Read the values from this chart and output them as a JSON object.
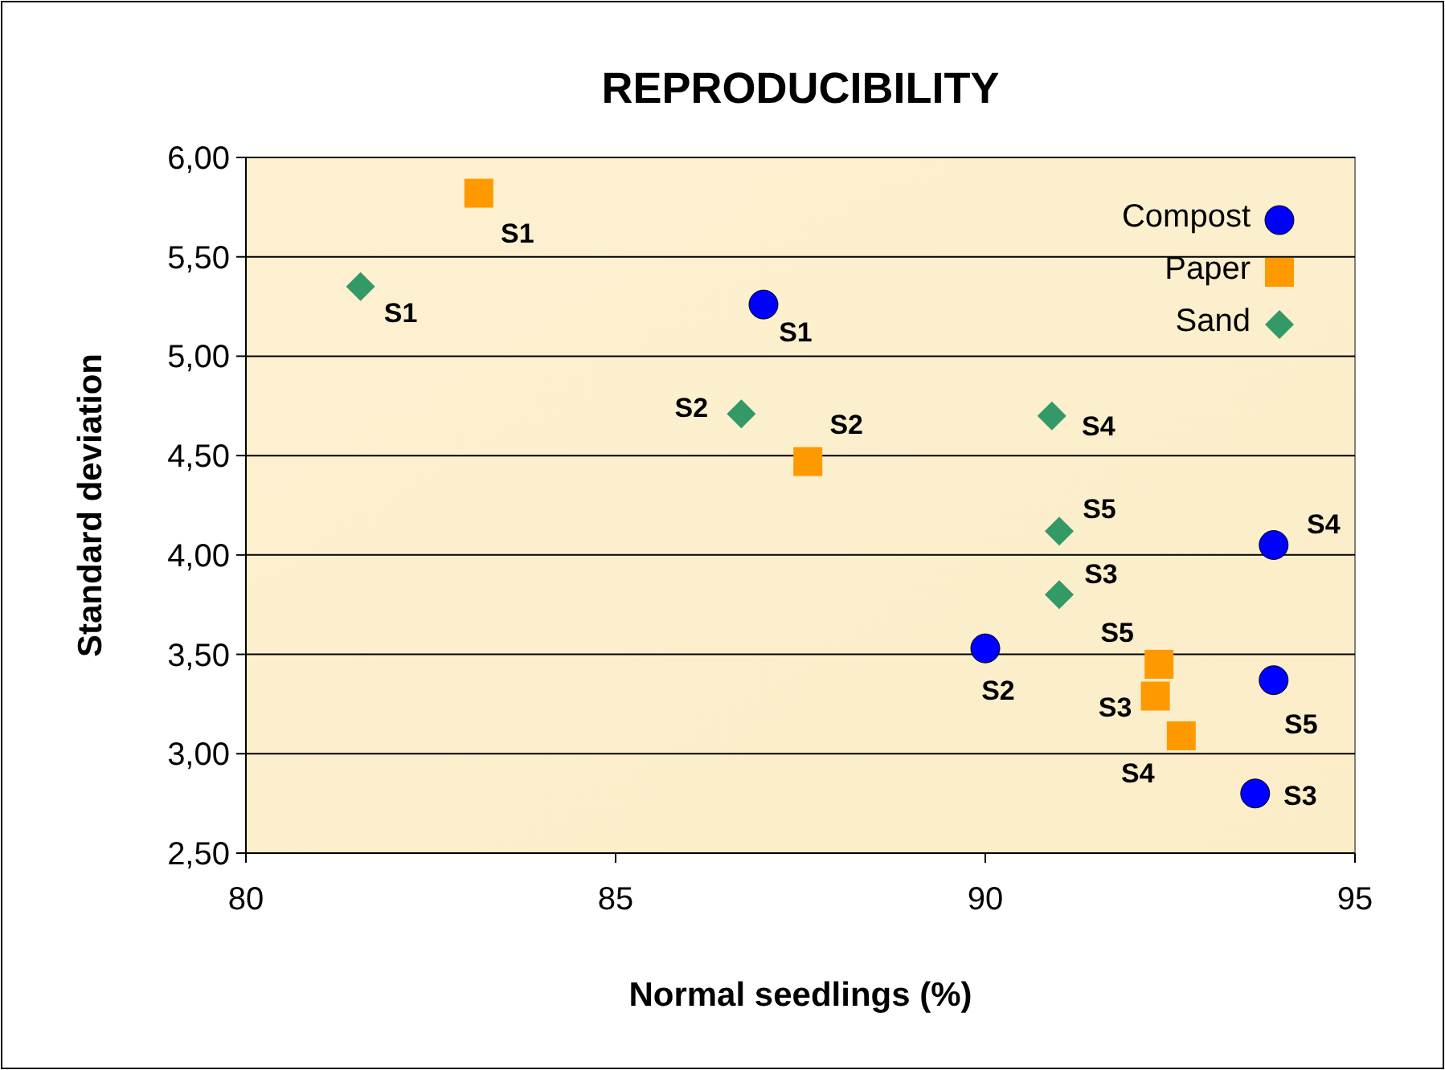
{
  "chart_data": {
    "type": "scatter",
    "title": "REPRODUCIBILITY",
    "xlabel": "Normal seedlings (%)",
    "ylabel": "Standard deviation",
    "xlim": [
      80,
      95
    ],
    "xticks": [
      80,
      85,
      90,
      95
    ],
    "ylim": [
      2.5,
      6
    ],
    "yticks": [
      {
        "value": 2.5,
        "label": "2,50"
      },
      {
        "value": 3,
        "label": "3,00"
      },
      {
        "value": 3.5,
        "label": "3,50"
      },
      {
        "value": 4,
        "label": "4,00"
      },
      {
        "value": 4.5,
        "label": "4,50"
      },
      {
        "value": 5,
        "label": "5,00"
      },
      {
        "value": 5.5,
        "label": "5,50"
      },
      {
        "value": 6,
        "label": "6,00"
      }
    ],
    "grid": "y",
    "legend": "top right",
    "series": [
      {
        "name": "Compost",
        "color": "#0000ff",
        "marker": "circle",
        "x": [
          87.0,
          90.0,
          93.9,
          93.9,
          93.65
        ],
        "values": [
          5.26,
          3.53,
          4.05,
          3.37,
          2.8
        ]
      },
      {
        "name": "Paper",
        "color": "#ff9900",
        "marker": "square",
        "x": [
          83.15,
          87.6,
          92.35,
          92.3,
          92.65
        ],
        "values": [
          5.82,
          4.47,
          3.45,
          3.29,
          3.09
        ]
      },
      {
        "name": "Sand",
        "color": "#339966",
        "marker": "diamond",
        "x": [
          81.55,
          86.7,
          90.9,
          91.0,
          91.0
        ],
        "values": [
          5.35,
          4.71,
          4.7,
          4.12,
          3.8
        ]
      }
    ],
    "annotations": [
      {
        "text": "S1",
        "x": 87.0,
        "y": 5.26
      },
      {
        "text": "S2",
        "x": 90.0,
        "y": 3.53
      },
      {
        "text": "S4",
        "x": 93.9,
        "y": 4.05
      },
      {
        "text": "S5",
        "x": 93.9,
        "y": 3.37
      },
      {
        "text": "S3",
        "x": 93.65,
        "y": 2.8
      },
      {
        "text": "S1",
        "x": 83.15,
        "y": 5.82
      },
      {
        "text": "S2",
        "x": 87.6,
        "y": 4.47
      },
      {
        "text": "S5",
        "x": 92.35,
        "y": 3.45
      },
      {
        "text": "S3",
        "x": 92.3,
        "y": 3.29
      },
      {
        "text": "S4",
        "x": 92.65,
        "y": 3.09
      },
      {
        "text": "S1",
        "x": 81.55,
        "y": 5.35
      },
      {
        "text": "S2",
        "x": 86.7,
        "y": 4.71
      },
      {
        "text": "S4",
        "x": 90.9,
        "y": 4.7
      },
      {
        "text": "S5",
        "x": 91.0,
        "y": 4.12
      },
      {
        "text": "S3",
        "x": 91.0,
        "y": 3.8
      }
    ]
  }
}
